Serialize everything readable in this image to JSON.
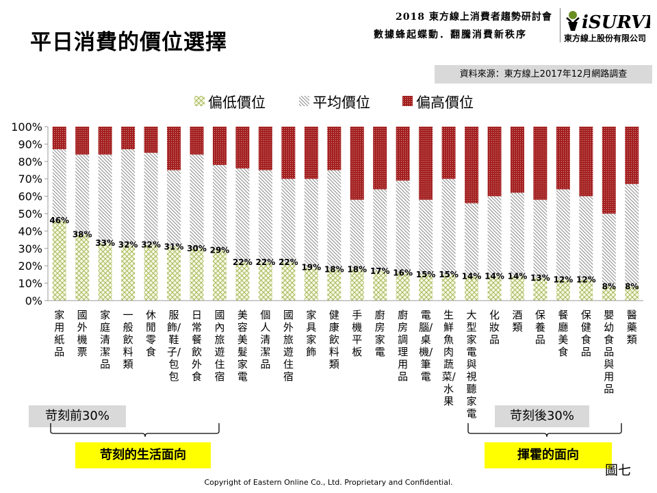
{
  "header": {
    "title": "平日消費的價位選擇",
    "event_line1": "2018 東方線上消費者趨勢研討會",
    "event_line2": "數據蜂起蝶動．翻騰消費新秩序",
    "logo_text": "iSURVEY",
    "company": "東方線上股份有限公司"
  },
  "source": "資料來源：東方線上2017年12月網路調查",
  "chart_data": {
    "type": "bar",
    "stacked": true,
    "ylim": [
      0,
      100
    ],
    "yticks": [
      "0%",
      "10%",
      "20%",
      "30%",
      "40%",
      "50%",
      "60%",
      "70%",
      "80%",
      "90%",
      "100%"
    ],
    "legend_position": "top",
    "categories": [
      "家用紙品",
      "國外機票",
      "家庭清潔品",
      "一般飲料類",
      "休閒零食",
      "服飾/鞋子/包包",
      "日常餐飲外食",
      "國內旅遊住宿",
      "美容美髮家電",
      "個人清潔品",
      "國外旅遊住宿",
      "家具家飾",
      "健康飲料類",
      "手機平板",
      "廚房家電",
      "廚房調理用品",
      "電腦/桌機/筆電",
      "生鮮魚肉蔬菜/水果",
      "大型家電與視聽家電",
      "化妝品",
      "酒類",
      "保養品",
      "餐廳美食",
      "保健食品",
      "嬰幼食品與用品",
      "醫藥類"
    ],
    "series": [
      {
        "name": "偏低價位",
        "color": "#8faa3c",
        "values": [
          46,
          38,
          33,
          32,
          32,
          31,
          30,
          29,
          22,
          22,
          22,
          19,
          18,
          18,
          17,
          16,
          15,
          15,
          14,
          14,
          14,
          13,
          12,
          12,
          8,
          8
        ]
      },
      {
        "name": "平均價位",
        "color": "#7f7f7f",
        "values": [
          41,
          46,
          51,
          55,
          53,
          44,
          54,
          49,
          54,
          53,
          48,
          51,
          57,
          40,
          47,
          53,
          43,
          55,
          42,
          46,
          48,
          45,
          52,
          48,
          42,
          59
        ]
      },
      {
        "name": "偏高價位",
        "color": "#9c1c1c",
        "values": [
          13,
          16,
          16,
          13,
          15,
          25,
          16,
          22,
          24,
          25,
          30,
          30,
          25,
          42,
          36,
          31,
          42,
          30,
          44,
          40,
          38,
          42,
          36,
          40,
          50,
          33
        ]
      }
    ],
    "data_labels": [
      "46%",
      "38%",
      "33%",
      "32%",
      "32%",
      "31%",
      "30%",
      "29%",
      "22%",
      "22%",
      "22%",
      "19%",
      "18%",
      "18%",
      "17%",
      "16%",
      "15%",
      "15%",
      "14%",
      "14%",
      "14%",
      "13%",
      "12%",
      "12%",
      "8%",
      "8%"
    ]
  },
  "groups": {
    "before_label": "苛刻前30%",
    "after_label": "苛刻後30%",
    "left_tag": "苛刻的生活面向",
    "right_tag": "揮霍的面向"
  },
  "figure_label": "圖七",
  "copyright": "Copyright of Eastern Online  Co., Ltd. Proprietary and Confidential."
}
